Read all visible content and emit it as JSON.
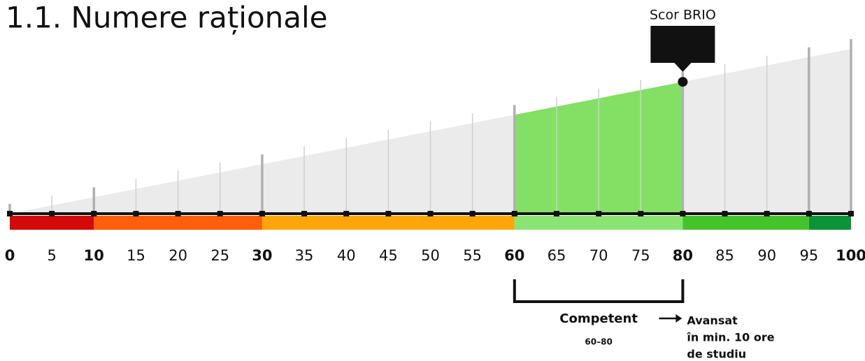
{
  "chart_data": {
    "type": "scale",
    "title": "1.1. Numere raționale",
    "score_label": "Scor BRIO",
    "score": 80,
    "xlim": [
      0,
      100
    ],
    "xticks": [
      0,
      5,
      10,
      15,
      20,
      25,
      30,
      35,
      40,
      45,
      50,
      55,
      60,
      65,
      70,
      75,
      80,
      85,
      90,
      95,
      100
    ],
    "bold_ticks": [
      0,
      10,
      30,
      60,
      80,
      100
    ],
    "bands": [
      {
        "from": 0,
        "to": 10,
        "color": "#d40a0a"
      },
      {
        "from": 10,
        "to": 30,
        "color": "#ff5e0a"
      },
      {
        "from": 30,
        "to": 60,
        "color": "#ffa50a"
      },
      {
        "from": 60,
        "to": 80,
        "color": "#8ae472"
      },
      {
        "from": 80,
        "to": 95,
        "color": "#44c42a"
      },
      {
        "from": 95,
        "to": 100,
        "color": "#0a9436"
      }
    ],
    "level": {
      "name": "Competent",
      "range_label": "60–80",
      "from": 60,
      "to": 80,
      "color": "#84e065"
    },
    "next_level": "Avansat",
    "next_note": [
      "în min. 10 ore",
      "de studiu"
    ]
  }
}
